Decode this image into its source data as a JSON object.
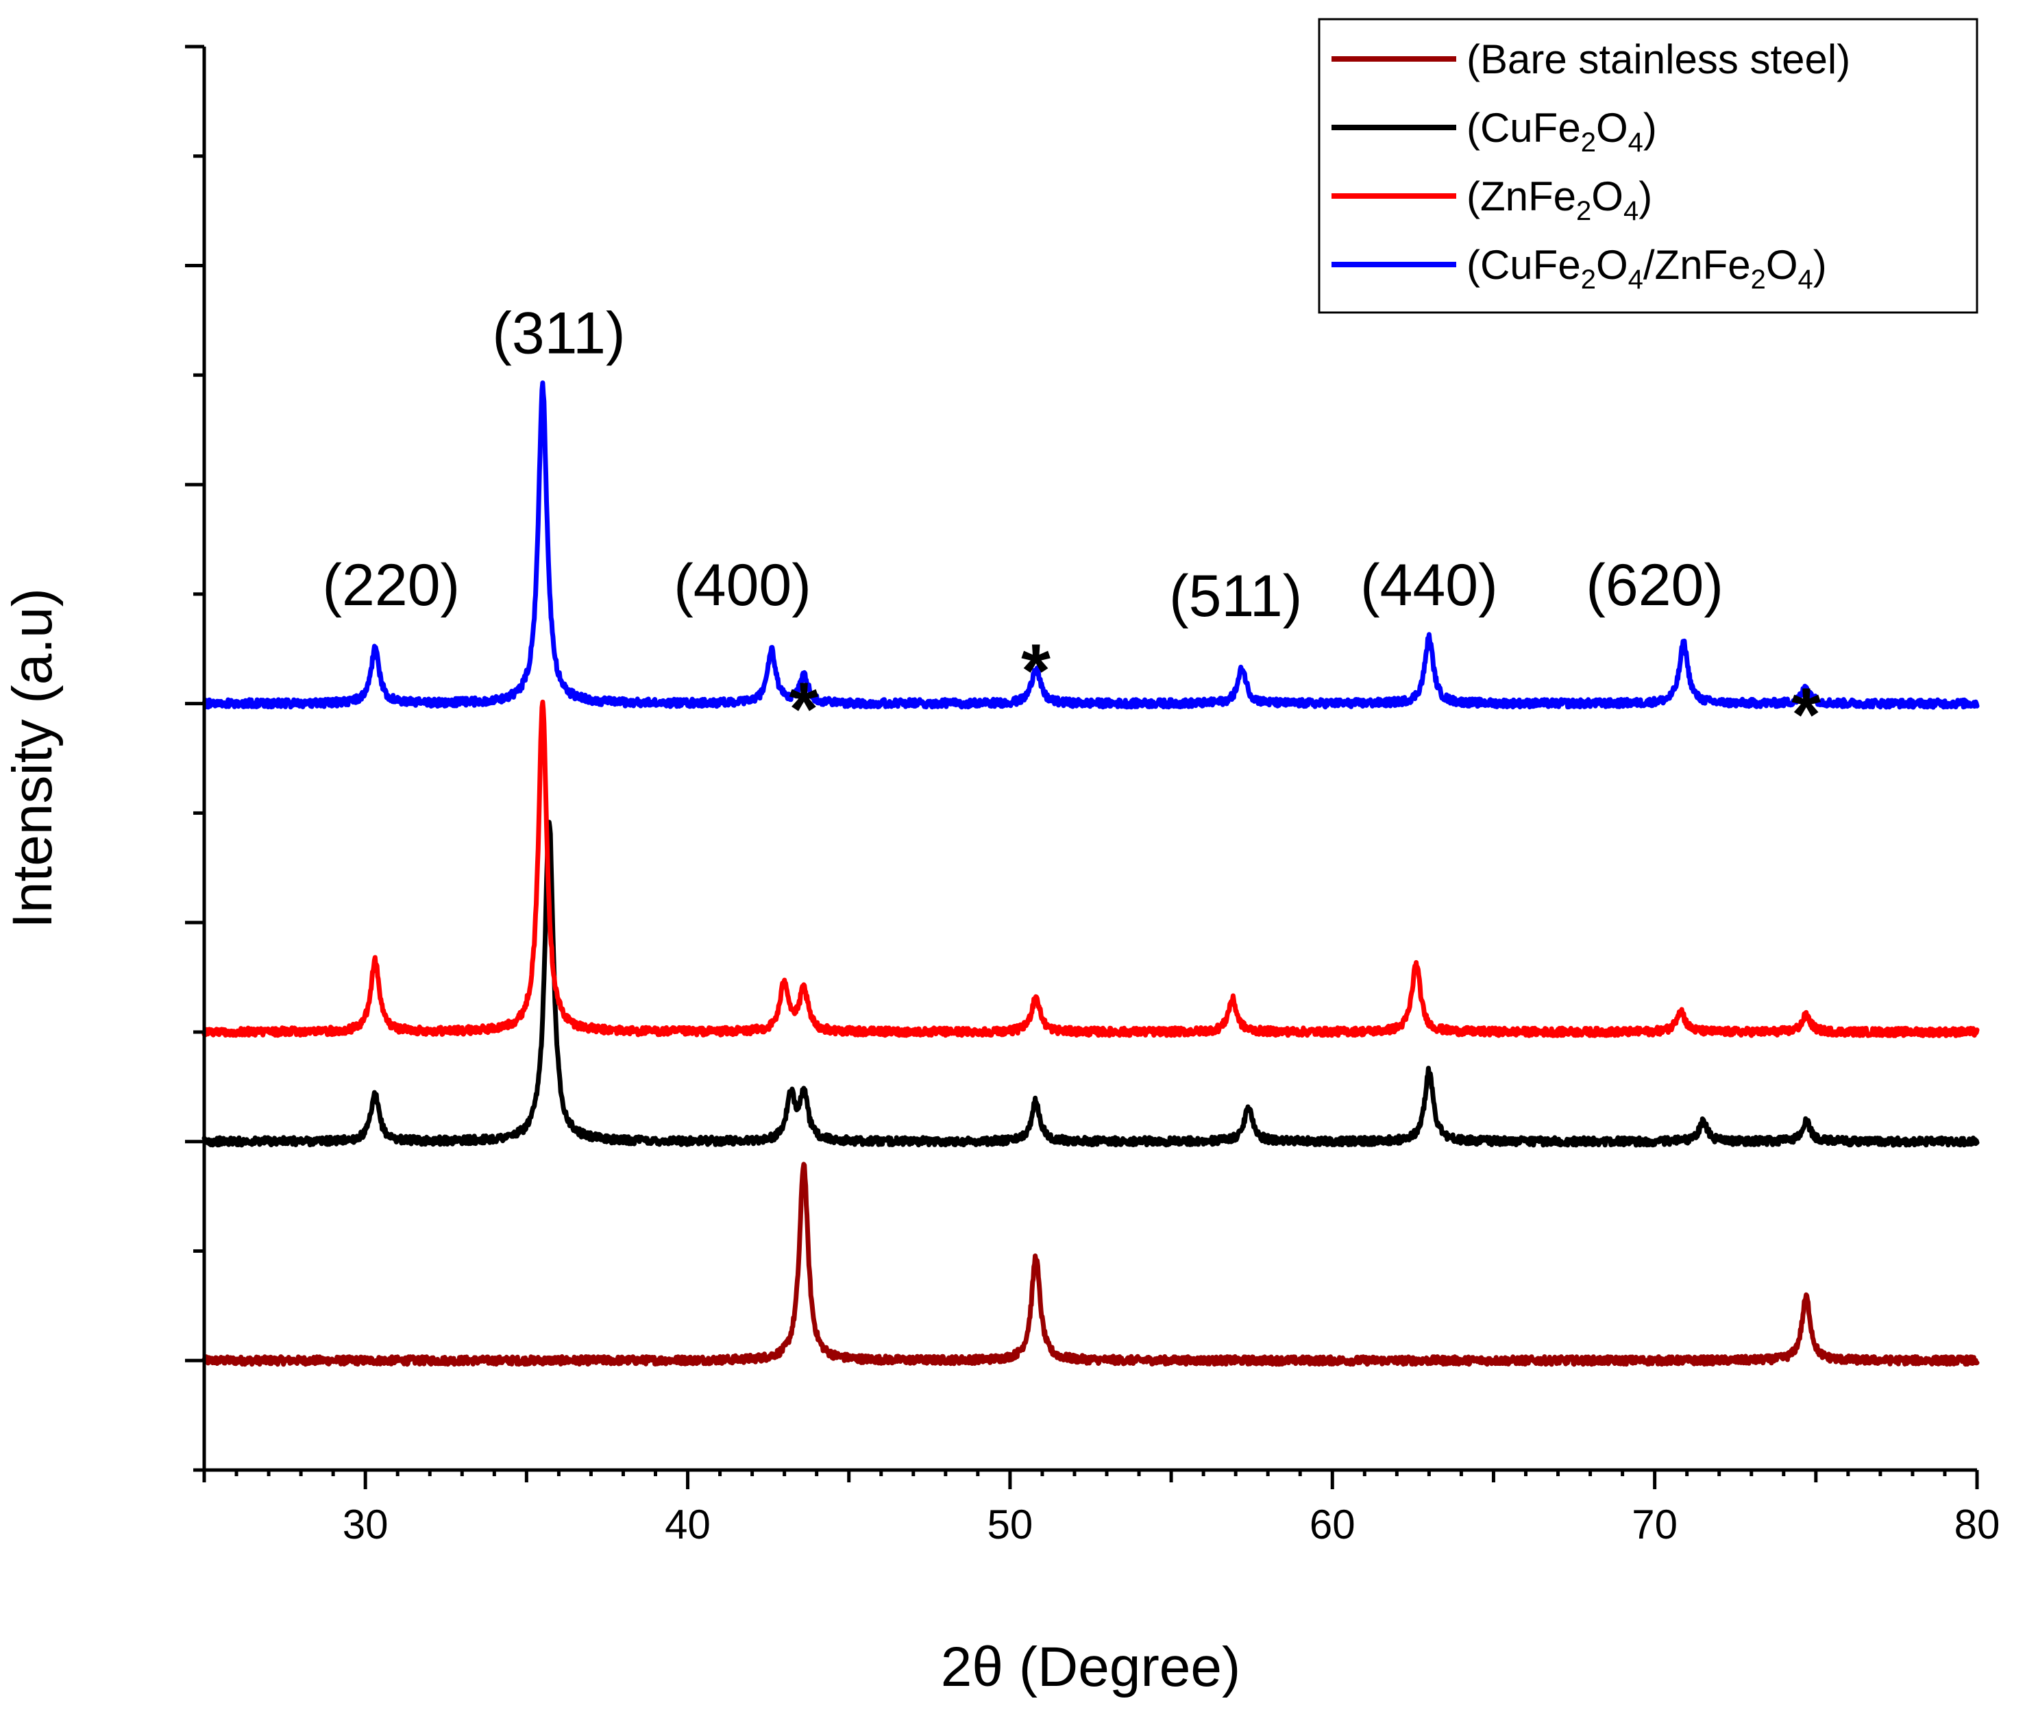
{
  "chart_data": {
    "type": "line",
    "title": "",
    "xlabel": "2θ (Degree)",
    "ylabel": "Intensity (a.u)",
    "xlim": [
      25,
      80
    ],
    "ylim": [
      -1,
      12
    ],
    "grid": false,
    "legend_position": "top-right",
    "x_ticks": [
      30,
      40,
      50,
      60,
      70,
      80
    ],
    "series": [
      {
        "name": "(Bare stainless steel)",
        "label_parts": [
          {
            "text": "(Bare stainless steel)",
            "sub": false
          }
        ],
        "color": "#990000",
        "baseline": 0,
        "peaks": [
          [
            43.6,
            1.8
          ],
          [
            50.8,
            0.95
          ],
          [
            74.7,
            0.58
          ]
        ]
      },
      {
        "name": "(CuFe2O4)",
        "label_parts": [
          {
            "text": "(CuFe",
            "sub": false
          },
          {
            "text": "2",
            "sub": true
          },
          {
            "text": "O",
            "sub": false
          },
          {
            "text": "4",
            "sub": true
          },
          {
            "text": ")",
            "sub": false
          }
        ],
        "color": "#000000",
        "baseline": 2,
        "peaks": [
          [
            30.3,
            0.42
          ],
          [
            35.7,
            2.95
          ],
          [
            43.2,
            0.4
          ],
          [
            43.6,
            0.42
          ],
          [
            50.8,
            0.37
          ],
          [
            57.4,
            0.32
          ],
          [
            63.0,
            0.65
          ],
          [
            71.5,
            0.18
          ],
          [
            74.7,
            0.18
          ]
        ]
      },
      {
        "name": "(ZnFe2O4)",
        "label_parts": [
          {
            "text": "(ZnFe",
            "sub": false
          },
          {
            "text": "2",
            "sub": true
          },
          {
            "text": "O",
            "sub": false
          },
          {
            "text": "4",
            "sub": true
          },
          {
            "text": ")",
            "sub": false
          }
        ],
        "color": "#ff0000",
        "baseline": 3,
        "peaks": [
          [
            30.3,
            0.65
          ],
          [
            35.5,
            3.0
          ],
          [
            43.0,
            0.45
          ],
          [
            43.6,
            0.38
          ],
          [
            50.8,
            0.32
          ],
          [
            56.9,
            0.3
          ],
          [
            62.6,
            0.62
          ],
          [
            70.8,
            0.2
          ],
          [
            74.7,
            0.15
          ]
        ]
      },
      {
        "name": "(CuFe2O4/ZnFe2O4)",
        "label_parts": [
          {
            "text": "(CuFe",
            "sub": false
          },
          {
            "text": "2",
            "sub": true
          },
          {
            "text": "O",
            "sub": false
          },
          {
            "text": "4",
            "sub": true
          },
          {
            "text": "/ZnFe",
            "sub": false
          },
          {
            "text": "2",
            "sub": true
          },
          {
            "text": "O",
            "sub": false
          },
          {
            "text": "4",
            "sub": true
          },
          {
            "text": ")",
            "sub": false
          }
        ],
        "color": "#0000ff",
        "baseline": 6,
        "peaks": [
          [
            30.3,
            0.5
          ],
          [
            35.5,
            2.9
          ],
          [
            42.6,
            0.48
          ],
          [
            43.6,
            0.25
          ],
          [
            50.8,
            0.33
          ],
          [
            57.2,
            0.32
          ],
          [
            63.0,
            0.6
          ],
          [
            70.9,
            0.55
          ],
          [
            74.7,
            0.15
          ]
        ]
      }
    ],
    "annotations": [
      {
        "text": "(220)",
        "x": 30.8,
        "y": 6.9
      },
      {
        "text": "(311)",
        "x": 36.0,
        "y": 9.2
      },
      {
        "text": "(400)",
        "x": 41.7,
        "y": 6.9
      },
      {
        "text": "*",
        "x": 43.6,
        "y": 6.15
      },
      {
        "text": "*",
        "x": 50.8,
        "y": 6.5
      },
      {
        "text": "(511)",
        "x": 57.0,
        "y": 6.8
      },
      {
        "text": "(440)",
        "x": 63.0,
        "y": 6.9
      },
      {
        "text": "(620)",
        "x": 70.0,
        "y": 6.9
      },
      {
        "text": "*",
        "x": 74.7,
        "y": 6.1
      }
    ]
  }
}
